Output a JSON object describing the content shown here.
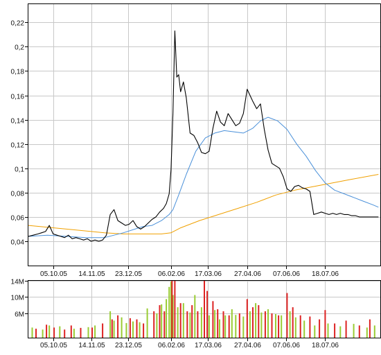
{
  "colors": {
    "price": "#000000",
    "ma_short": "#4a90d9",
    "ma_long": "#f0a000",
    "grid": "#c8c8c8",
    "vol_up": "#99cc33",
    "vol_down": "#dd2222"
  },
  "chart_data": [
    {
      "type": "line",
      "title": "",
      "xlabel": "",
      "ylabel": "",
      "ylim": [
        0.02,
        0.235
      ],
      "y_ticks": [
        "0,04",
        "0,06",
        "0,08",
        "0,1",
        "0,12",
        "0,14",
        "0,16",
        "0,18",
        "0,2",
        "0,22"
      ],
      "y_tick_values": [
        0.04,
        0.06,
        0.08,
        0.1,
        0.12,
        0.14,
        0.16,
        0.18,
        0.2,
        0.22
      ],
      "x_ticks": [
        "05.10.05",
        "14.11.05",
        "23.12.05",
        "06.02.06",
        "17.03.06",
        "27.04.06",
        "07.06.06",
        "18.07.06"
      ],
      "x_tick_days": [
        26,
        66,
        105,
        150,
        189,
        230,
        271,
        312
      ],
      "x_days_range": [
        0,
        370
      ],
      "grid": true,
      "series": [
        {
          "key": "price",
          "x": [
            0,
            5,
            10,
            14,
            18,
            22,
            26,
            30,
            34,
            38,
            42,
            46,
            50,
            54,
            58,
            62,
            66,
            70,
            74,
            78,
            82,
            86,
            90,
            94,
            98,
            102,
            106,
            110,
            114,
            118,
            122,
            126,
            130,
            134,
            138,
            142,
            145,
            148,
            150,
            152,
            154,
            156,
            158,
            160,
            163,
            166,
            170,
            174,
            178,
            182,
            186,
            190,
            194,
            198,
            202,
            206,
            210,
            214,
            218,
            222,
            226,
            230,
            233,
            236,
            240,
            244,
            248,
            252,
            256,
            260,
            264,
            268,
            272,
            276,
            280,
            284,
            288,
            292,
            296,
            300,
            304,
            308,
            312,
            316,
            320,
            324,
            328,
            332,
            336,
            340,
            344,
            348,
            352,
            356,
            360,
            364,
            368
          ],
          "values": [
            0.044,
            0.045,
            0.046,
            0.047,
            0.048,
            0.053,
            0.046,
            0.045,
            0.044,
            0.043,
            0.045,
            0.042,
            0.043,
            0.042,
            0.041,
            0.042,
            0.04,
            0.041,
            0.04,
            0.041,
            0.045,
            0.062,
            0.066,
            0.057,
            0.055,
            0.053,
            0.054,
            0.057,
            0.052,
            0.05,
            0.052,
            0.055,
            0.058,
            0.06,
            0.064,
            0.067,
            0.071,
            0.079,
            0.099,
            0.146,
            0.213,
            0.175,
            0.177,
            0.163,
            0.171,
            0.158,
            0.129,
            0.127,
            0.121,
            0.113,
            0.112,
            0.114,
            0.133,
            0.147,
            0.138,
            0.135,
            0.145,
            0.14,
            0.135,
            0.137,
            0.145,
            0.165,
            0.16,
            0.155,
            0.149,
            0.153,
            0.132,
            0.115,
            0.104,
            0.102,
            0.1,
            0.093,
            0.083,
            0.081,
            0.085,
            0.086,
            0.084,
            0.083,
            0.081,
            0.062,
            0.063,
            0.064,
            0.063,
            0.062,
            0.063,
            0.062,
            0.063,
            0.062,
            0.062,
            0.061,
            0.061,
            0.06,
            0.06,
            0.06,
            0.06,
            0.06,
            0.06
          ]
        },
        {
          "key": "ma_short",
          "x": [
            0,
            20,
            40,
            60,
            80,
            100,
            120,
            130,
            140,
            148,
            152,
            158,
            166,
            176,
            186,
            196,
            206,
            216,
            226,
            236,
            244,
            252,
            262,
            272,
            282,
            292,
            302,
            312,
            322,
            332,
            342,
            352,
            362,
            368
          ],
          "values": [
            0.044,
            0.045,
            0.044,
            0.043,
            0.043,
            0.047,
            0.052,
            0.053,
            0.057,
            0.062,
            0.066,
            0.078,
            0.095,
            0.114,
            0.125,
            0.129,
            0.131,
            0.13,
            0.129,
            0.133,
            0.139,
            0.142,
            0.139,
            0.132,
            0.12,
            0.11,
            0.098,
            0.088,
            0.082,
            0.079,
            0.076,
            0.073,
            0.07,
            0.068
          ]
        },
        {
          "key": "ma_long",
          "x": [
            0,
            40,
            80,
            100,
            140,
            150,
            160,
            180,
            200,
            220,
            240,
            260,
            280,
            300,
            320,
            340,
            368
          ],
          "values": [
            0.053,
            0.05,
            0.047,
            0.046,
            0.046,
            0.047,
            0.051,
            0.057,
            0.062,
            0.067,
            0.072,
            0.078,
            0.082,
            0.085,
            0.088,
            0.091,
            0.095
          ]
        }
      ]
    },
    {
      "type": "bar",
      "title": "",
      "xlabel": "",
      "ylabel": "",
      "ylim": [
        0,
        14
      ],
      "y_ticks": [
        "6M",
        "10M",
        "14M"
      ],
      "y_tick_values": [
        6,
        10,
        14
      ],
      "unit": "M",
      "x_ticks": [
        "05.10.05",
        "14.11.05",
        "23.12.05",
        "06.02.06",
        "17.03.06",
        "27.04.06",
        "07.06.06",
        "18.07.06"
      ],
      "x_tick_days": [
        26,
        66,
        105,
        150,
        189,
        230,
        271,
        312
      ],
      "x_days_range": [
        0,
        370
      ],
      "grid": true,
      "series": [
        {
          "name": "",
          "key": "vol_up",
          "x": [
            4,
            15,
            22,
            33,
            48,
            63,
            70,
            86,
            90,
            98,
            103,
            110,
            117,
            125,
            135,
            140,
            145,
            148,
            150,
            152,
            157,
            163,
            170,
            175,
            182,
            190,
            196,
            201,
            207,
            214,
            218,
            226,
            233,
            239,
            245,
            252,
            260,
            266,
            275,
            281,
            290,
            301,
            315,
            328,
            342,
            356,
            364
          ],
          "values": [
            2.5,
            2.0,
            3.0,
            2.8,
            2.2,
            2.6,
            3.0,
            6.5,
            4.2,
            5.0,
            3.6,
            4.0,
            3.8,
            7.2,
            6.0,
            8.2,
            9.5,
            12.5,
            13.8,
            10.5,
            7.5,
            8.5,
            6.2,
            10.5,
            7.5,
            5.5,
            6.8,
            4.5,
            5.5,
            7.0,
            5.6,
            5.2,
            6.5,
            8.5,
            6.2,
            7.0,
            5.8,
            5.5,
            6.5,
            5.0,
            4.2,
            3.0,
            3.5,
            2.8,
            3.4,
            2.5,
            3.0
          ]
        },
        {
          "name": "",
          "key": "vol_down",
          "x": [
            8,
            19,
            27,
            38,
            45,
            55,
            67,
            78,
            88,
            94,
            107,
            114,
            121,
            132,
            138,
            143,
            151,
            154,
            160,
            167,
            172,
            178,
            185,
            188,
            194,
            199,
            205,
            211,
            222,
            230,
            236,
            242,
            249,
            256,
            263,
            272,
            278,
            286,
            296,
            306,
            312,
            322,
            334,
            348,
            359
          ],
          "values": [
            2.2,
            3.2,
            2.5,
            2.0,
            3.0,
            2.4,
            2.5,
            3.5,
            4.5,
            5.5,
            4.8,
            4.5,
            3.5,
            6.5,
            8.0,
            6.5,
            14.0,
            14.0,
            8.5,
            6.5,
            8.0,
            6.5,
            14.0,
            11.5,
            9.0,
            7.0,
            6.5,
            5.5,
            6.0,
            9.5,
            7.5,
            8.0,
            6.5,
            6.0,
            5.5,
            11.0,
            7.5,
            5.5,
            5.2,
            4.5,
            6.8,
            3.5,
            4.2,
            3.0,
            4.5
          ]
        }
      ]
    }
  ]
}
